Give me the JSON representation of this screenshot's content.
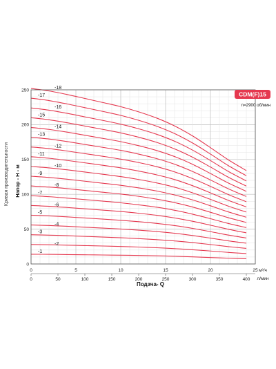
{
  "chart_data": {
    "type": "line",
    "title": "CDM(F)15",
    "subtitle": "n=2900 об/мин",
    "side_title": "Кривая производительности",
    "xlabel": "Подача- Q",
    "ylabel": "Напор - H - м",
    "x_top_unit": "м³/ч",
    "x_bottom_unit": "л/мин",
    "xlim_m3h": [
      0,
      25
    ],
    "x_ticks_m3h": [
      0,
      5,
      10,
      15,
      20,
      25
    ],
    "x_ticks_lmin": [
      0,
      50,
      100,
      150,
      200,
      250,
      300,
      350,
      400
    ],
    "ylim": [
      0,
      250
    ],
    "y_ticks": [
      0,
      50,
      100,
      150,
      200,
      250
    ],
    "grid": true,
    "curve_color": "#e5384f",
    "badge_color": "#e5384f",
    "series_x_m3h": [
      0,
      2,
      4,
      6,
      8,
      10,
      12,
      14,
      16,
      18,
      20,
      22,
      24
    ],
    "series": [
      {
        "name": "-1",
        "values": [
          14,
          13.8,
          13.5,
          13.2,
          12.9,
          12.6,
          12.2,
          11.7,
          11.1,
          10.2,
          9.2,
          8.3,
          7.5
        ]
      },
      {
        "name": "-2",
        "values": [
          28,
          27.6,
          27.0,
          26.4,
          25.8,
          25.1,
          24.3,
          23.3,
          22.0,
          20.4,
          18.6,
          16.6,
          14.9
        ]
      },
      {
        "name": "-3",
        "values": [
          42,
          41.4,
          40.6,
          39.6,
          38.6,
          37.6,
          36.4,
          34.9,
          33.1,
          30.7,
          27.9,
          24.9,
          22.4
        ]
      },
      {
        "name": "-4",
        "values": [
          56,
          55.2,
          54.1,
          52.8,
          51.5,
          50.2,
          48.5,
          46.6,
          44.1,
          40.9,
          37.1,
          33.2,
          29.8
        ]
      },
      {
        "name": "-5",
        "values": [
          70,
          69.0,
          67.6,
          66.0,
          64.4,
          62.7,
          60.7,
          58.2,
          55.1,
          51.1,
          46.4,
          41.5,
          37.3
        ]
      },
      {
        "name": "-6",
        "values": [
          84,
          82.8,
          81.1,
          79.2,
          77.3,
          75.3,
          72.8,
          69.9,
          66.1,
          61.3,
          55.7,
          49.8,
          44.7
        ]
      },
      {
        "name": "-7",
        "values": [
          98,
          96.6,
          94.6,
          92.4,
          90.2,
          87.8,
          84.9,
          81.5,
          77.1,
          71.5,
          65.0,
          58.1,
          52.2
        ]
      },
      {
        "name": "-8",
        "values": [
          112,
          110.4,
          108.2,
          105.6,
          103.0,
          100.4,
          97.1,
          93.1,
          88.1,
          81.8,
          74.2,
          66.4,
          59.6
        ]
      },
      {
        "name": "-9",
        "values": [
          126,
          124.2,
          121.7,
          118.8,
          115.9,
          112.9,
          109.2,
          104.8,
          99.1,
          92.0,
          83.5,
          74.7,
          67.1
        ]
      },
      {
        "name": "-10",
        "values": [
          140,
          138.0,
          135.2,
          132.0,
          128.8,
          125.4,
          121.3,
          116.4,
          110.2,
          102.2,
          92.8,
          83.0,
          74.5
        ]
      },
      {
        "name": "-11",
        "values": [
          154,
          151.8,
          148.7,
          145.2,
          141.7,
          138.0,
          133.4,
          128.0,
          121.2,
          112.4,
          102.1,
          91.3,
          82.0
        ]
      },
      {
        "name": "-12",
        "values": [
          168,
          165.6,
          162.2,
          158.4,
          154.6,
          150.5,
          145.6,
          139.7,
          132.2,
          122.6,
          111.4,
          99.6,
          89.4
        ]
      },
      {
        "name": "-13",
        "values": [
          182,
          179.4,
          175.8,
          171.6,
          167.4,
          163.1,
          157.7,
          151.3,
          143.2,
          132.8,
          120.6,
          107.9,
          96.9
        ]
      },
      {
        "name": "-14",
        "values": [
          196,
          193.2,
          189.3,
          184.8,
          180.3,
          175.6,
          169.8,
          162.9,
          154.2,
          143.1,
          129.9,
          116.2,
          104.3
        ]
      },
      {
        "name": "-15",
        "values": [
          210,
          207.0,
          202.8,
          198.0,
          193.2,
          188.2,
          182.0,
          174.6,
          165.2,
          153.3,
          139.2,
          124.5,
          111.8
        ]
      },
      {
        "name": "-16",
        "values": [
          224,
          220.8,
          216.3,
          211.2,
          206.1,
          200.7,
          194.1,
          186.2,
          176.2,
          163.5,
          148.5,
          132.8,
          119.2
        ]
      },
      {
        "name": "-17",
        "values": [
          238,
          234.6,
          229.8,
          224.4,
          219.0,
          213.3,
          206.2,
          197.8,
          187.2,
          173.7,
          157.8,
          141.1,
          126.7
        ]
      },
      {
        "name": "-18",
        "values": [
          252,
          248.4,
          243.4,
          237.6,
          231.8,
          225.8,
          218.4,
          209.5,
          198.2,
          183.9,
          167.0,
          149.4,
          134.1
        ]
      }
    ]
  }
}
